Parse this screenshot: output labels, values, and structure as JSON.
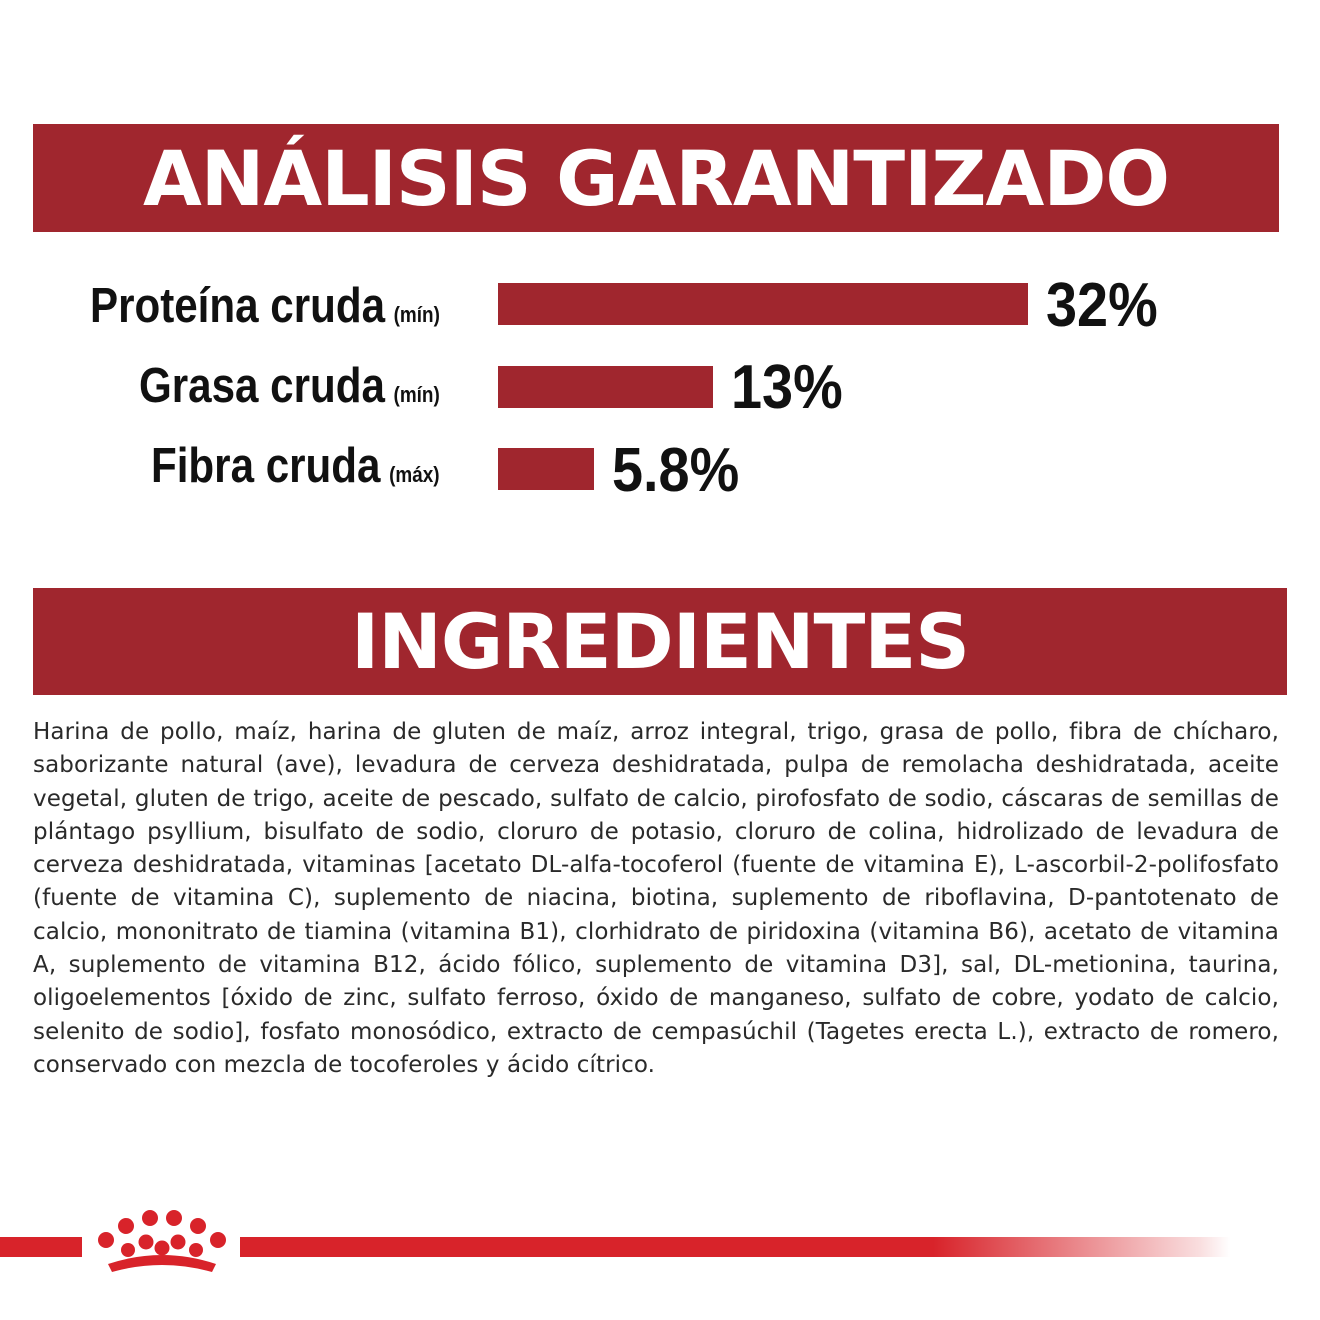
{
  "analysis_title": "ANÁLISIS GARANTIZADO",
  "ingredients_title": "INGREDIENTES",
  "nutrients": [
    {
      "label": "Proteína cruda",
      "qualifier": "(mín)",
      "value_text": "32%"
    },
    {
      "label": "Grasa cruda",
      "qualifier": "(mín)",
      "value_text": "13%"
    },
    {
      "label": "Fibra cruda",
      "qualifier": "(máx)",
      "value_text": "5.8%"
    }
  ],
  "chart_data": {
    "type": "bar",
    "orientation": "horizontal",
    "categories": [
      "Proteína cruda (mín)",
      "Grasa cruda (mín)",
      "Fibra cruda (máx)"
    ],
    "values": [
      32,
      13,
      5.8
    ],
    "unit": "%",
    "bar_color": "#a0262e",
    "grid": false,
    "legend": "none"
  },
  "ingredients": "Harina de pollo, maíz, harina de gluten de maíz, arroz integral, trigo, grasa de pollo, fibra de chícharo, saborizante natural (ave), levadura de cerveza deshidratada, pulpa de remolacha deshidratada, aceite vegetal, gluten de trigo, aceite de pescado, sulfato de calcio, pirofosfato de sodio, cáscaras de semillas de plántago psyllium, bisulfato de sodio, cloruro de potasio, cloruro de colina, hidrolizado de levadura de cerveza deshidratada, vitaminas [acetato DL-alfa-tocoferol (fuente de vitamina E), L-ascorbil-2-polifosfato (fuente de vitamina C), suplemento de niacina, biotina, suplemento de riboflavina, D-pantotenato de calcio, mononitrato de tiamina (vitamina B1), clorhidrato de piridoxina (vitamina B6), acetato de vitamina A, suplemento de vitamina B12, ácido fólico, suplemento de vitamina D3], sal, DL-metionina, taurina, oligoelementos [óxido de zinc, sulfato ferroso, óxido de manganeso, sulfato de cobre, yodato de calcio, selenito de sodio], fosfato monosódico, extracto de cempasúchil (Tagetes erecta L.), extracto de romero, conservado con mezcla de tocoferoles y ácido cítrico.",
  "colors": {
    "brand_red": "#a0262e",
    "footer_red": "#d8232a"
  },
  "logo": "royal-crown-icon"
}
